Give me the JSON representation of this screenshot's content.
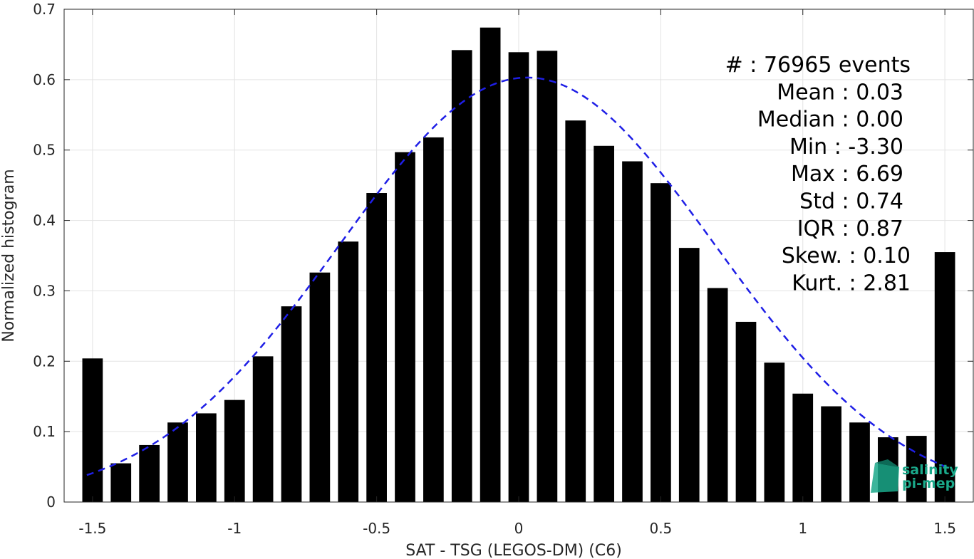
{
  "chart_data": {
    "type": "bar",
    "xlabel": "SAT - TSG (LEGOS-DM) (C6)",
    "ylabel": "Normalized histogram",
    "xlim": [
      -1.6,
      1.6
    ],
    "ylim": [
      0,
      0.7
    ],
    "grid": true,
    "x_ticks": [
      "-1.5",
      "-1",
      "-0.5",
      "0",
      "0.5",
      "1",
      "1.5"
    ],
    "y_ticks": [
      "0",
      "0.1",
      "0.2",
      "0.3",
      "0.4",
      "0.5",
      "0.6",
      "0.7"
    ],
    "bar_color": "#000000",
    "bins": [
      -1.5,
      -1.4,
      -1.3,
      -1.2,
      -1.1,
      -1.0,
      -0.9,
      -0.8,
      -0.7,
      -0.6,
      -0.5,
      -0.4,
      -0.3,
      -0.2,
      -0.1,
      0.0,
      0.1,
      0.2,
      0.3,
      0.4,
      0.5,
      0.6,
      0.7,
      0.8,
      0.9,
      1.0,
      1.1,
      1.2,
      1.3,
      1.4,
      1.5
    ],
    "values": [
      0.204,
      0.055,
      0.081,
      0.113,
      0.126,
      0.145,
      0.207,
      0.278,
      0.326,
      0.37,
      0.439,
      0.497,
      0.518,
      0.642,
      0.674,
      0.639,
      0.641,
      0.542,
      0.506,
      0.484,
      0.453,
      0.361,
      0.304,
      0.256,
      0.198,
      0.154,
      0.136,
      0.113,
      0.092,
      0.094,
      0.355
    ],
    "fit_curve": {
      "style": "dashed",
      "color": "#1f1fe6",
      "mean": 0.03,
      "std": 0.66,
      "peak": 0.603,
      "x_range": [
        -1.52,
        1.52
      ]
    },
    "stats": [
      "#  : 76965 events",
      "Mean : 0.03",
      "Median : 0.00",
      "Min : -3.30",
      "Max : 6.69",
      "Std : 0.74",
      "IQR : 0.87",
      "Skew. : 0.10",
      "Kurt. : 2.81"
    ],
    "logo": {
      "line1": "salinity",
      "line2": "pi-mep",
      "color": "#1aa88a"
    }
  }
}
